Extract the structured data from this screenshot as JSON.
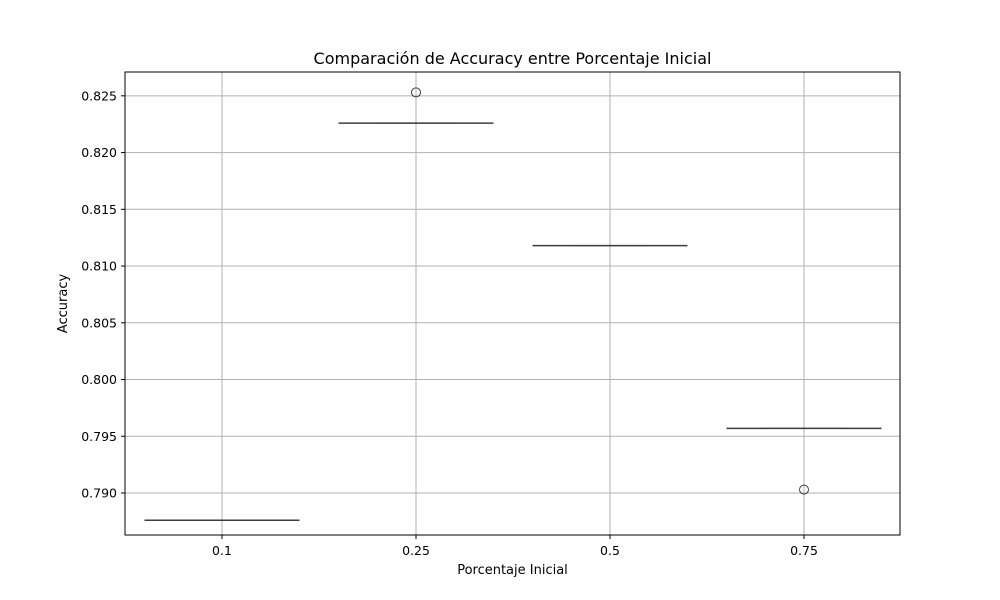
{
  "chart_data": {
    "type": "box",
    "title": "Comparación de Accuracy entre Porcentaje Inicial",
    "xlabel": "Porcentaje Inicial",
    "ylabel": "Accuracy",
    "categories": [
      "0.1",
      "0.25",
      "0.5",
      "0.75"
    ],
    "ylim": [
      0.7863,
      0.8271
    ],
    "yticks": [
      0.79,
      0.795,
      0.8,
      0.805,
      0.81,
      0.815,
      0.82,
      0.825
    ],
    "ytick_labels": [
      "0.790",
      "0.795",
      "0.800",
      "0.805",
      "0.810",
      "0.815",
      "0.820",
      "0.825"
    ],
    "grid": true,
    "boxes": [
      {
        "category": "0.1",
        "median": 0.7876,
        "outliers": []
      },
      {
        "category": "0.25",
        "median": 0.8226,
        "outliers": [
          0.8253
        ]
      },
      {
        "category": "0.5",
        "median": 0.8118,
        "outliers": []
      },
      {
        "category": "0.75",
        "median": 0.7957,
        "outliers": [
          0.7903
        ]
      }
    ]
  }
}
